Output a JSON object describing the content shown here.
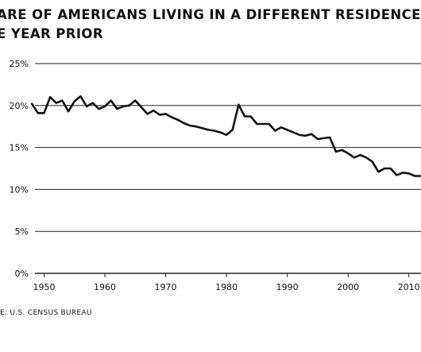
{
  "title_line1": "ARE OF AMERICANS LIVING IN A DIFFERENT RESIDENCE",
  "title_line2": "E YEAR PRIOR",
  "source": "E: U.S. CENSUS BUREAU",
  "chart_data": {
    "type": "line",
    "title": "ARE OF AMERICANS LIVING IN A DIFFERENT RESIDENCE E YEAR PRIOR",
    "xlabel": "",
    "ylabel": "",
    "xlim": [
      1948.5,
      2012
    ],
    "ylim": [
      0,
      25
    ],
    "y_ticks": [
      0,
      5,
      10,
      15,
      20,
      25
    ],
    "y_tick_labels": [
      "0%",
      "5%",
      "10%",
      "15%",
      "20%",
      "25%"
    ],
    "x_ticks": [
      1950,
      1960,
      1970,
      1980,
      1990,
      2000,
      2010
    ],
    "x_tick_labels": [
      "1950",
      "1960",
      "1970",
      "1980",
      "1990",
      "2000",
      "2010"
    ],
    "grid": "horizontal",
    "series": [
      {
        "name": "",
        "x": [
          1948,
          1949,
          1950,
          1951,
          1952,
          1953,
          1954,
          1955,
          1956,
          1957,
          1958,
          1959,
          1960,
          1961,
          1962,
          1963,
          1964,
          1965,
          1966,
          1967,
          1968,
          1969,
          1970,
          1971,
          1972,
          1973,
          1974,
          1975,
          1976,
          1977,
          1978,
          1979,
          1980,
          1981,
          1982,
          1983,
          1984,
          1985,
          1986,
          1987,
          1988,
          1989,
          1990,
          1991,
          1992,
          1993,
          1994,
          1995,
          1996,
          1997,
          1998,
          1999,
          2000,
          2001,
          2002,
          2003,
          2004,
          2005,
          2006,
          2007,
          2008,
          2009,
          2010,
          2011,
          2012
        ],
        "values": [
          20.2,
          19.1,
          19.1,
          21.0,
          20.3,
          20.6,
          19.3,
          20.5,
          21.1,
          19.9,
          20.3,
          19.6,
          19.9,
          20.6,
          19.6,
          19.9,
          20.0,
          20.6,
          19.8,
          19.0,
          19.4,
          18.9,
          19.0,
          18.6,
          18.3,
          17.9,
          17.6,
          17.5,
          17.3,
          17.1,
          17.0,
          16.8,
          16.5,
          17.1,
          20.1,
          18.7,
          18.7,
          17.8,
          17.8,
          17.8,
          17.0,
          17.4,
          17.1,
          16.8,
          16.5,
          16.4,
          16.6,
          16.0,
          16.1,
          16.2,
          14.5,
          14.7,
          14.3,
          13.8,
          14.1,
          13.8,
          13.3,
          12.1,
          12.5,
          12.5,
          11.7,
          12.0,
          11.9,
          11.6,
          11.6
        ]
      }
    ]
  }
}
